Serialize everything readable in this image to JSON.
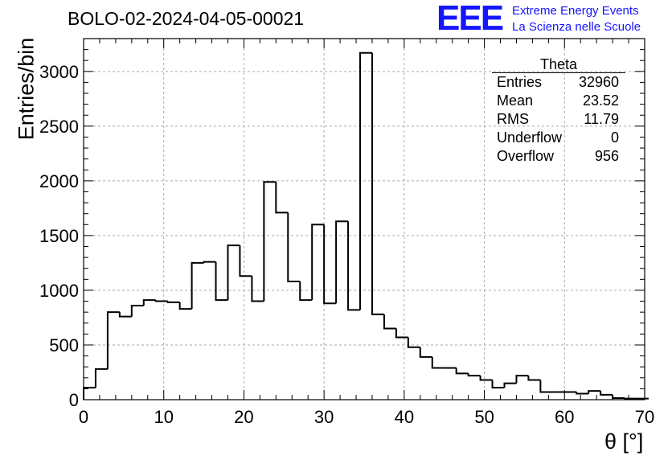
{
  "title": "BOLO-02-2024-04-05-00021",
  "logo": {
    "mark": "EEE",
    "line1": "Extreme Energy Events",
    "line2": "La Scienza nelle Scuole",
    "color": "#1515ff"
  },
  "stats": {
    "name": "Theta",
    "rows": [
      {
        "label": "Entries",
        "value": "32960"
      },
      {
        "label": "Mean",
        "value": "23.52"
      },
      {
        "label": "RMS",
        "value": "11.79"
      },
      {
        "label": "Underflow",
        "value": "0"
      },
      {
        "label": "Overflow",
        "value": "956"
      }
    ]
  },
  "chart_data": {
    "type": "bar",
    "style": "step-histogram",
    "xlabel": "θ [°]",
    "ylabel": "Entries/bin",
    "xlim": [
      0,
      70
    ],
    "ylim": [
      0,
      3300
    ],
    "xticks": [
      0,
      10,
      20,
      30,
      40,
      50,
      60,
      70
    ],
    "yticks": [
      0,
      500,
      1000,
      1500,
      2000,
      2500,
      3000
    ],
    "grid": true,
    "bin_width": 1.5,
    "bin_edges_start": 0,
    "values": [
      110,
      280,
      800,
      760,
      860,
      910,
      900,
      890,
      830,
      1250,
      1260,
      910,
      1410,
      1130,
      900,
      1990,
      1710,
      1080,
      910,
      1600,
      880,
      1630,
      820,
      3170,
      780,
      650,
      570,
      480,
      390,
      290,
      290,
      240,
      220,
      180,
      110,
      150,
      220,
      180,
      70,
      70,
      70,
      55,
      80,
      45,
      15,
      10,
      10
    ]
  }
}
